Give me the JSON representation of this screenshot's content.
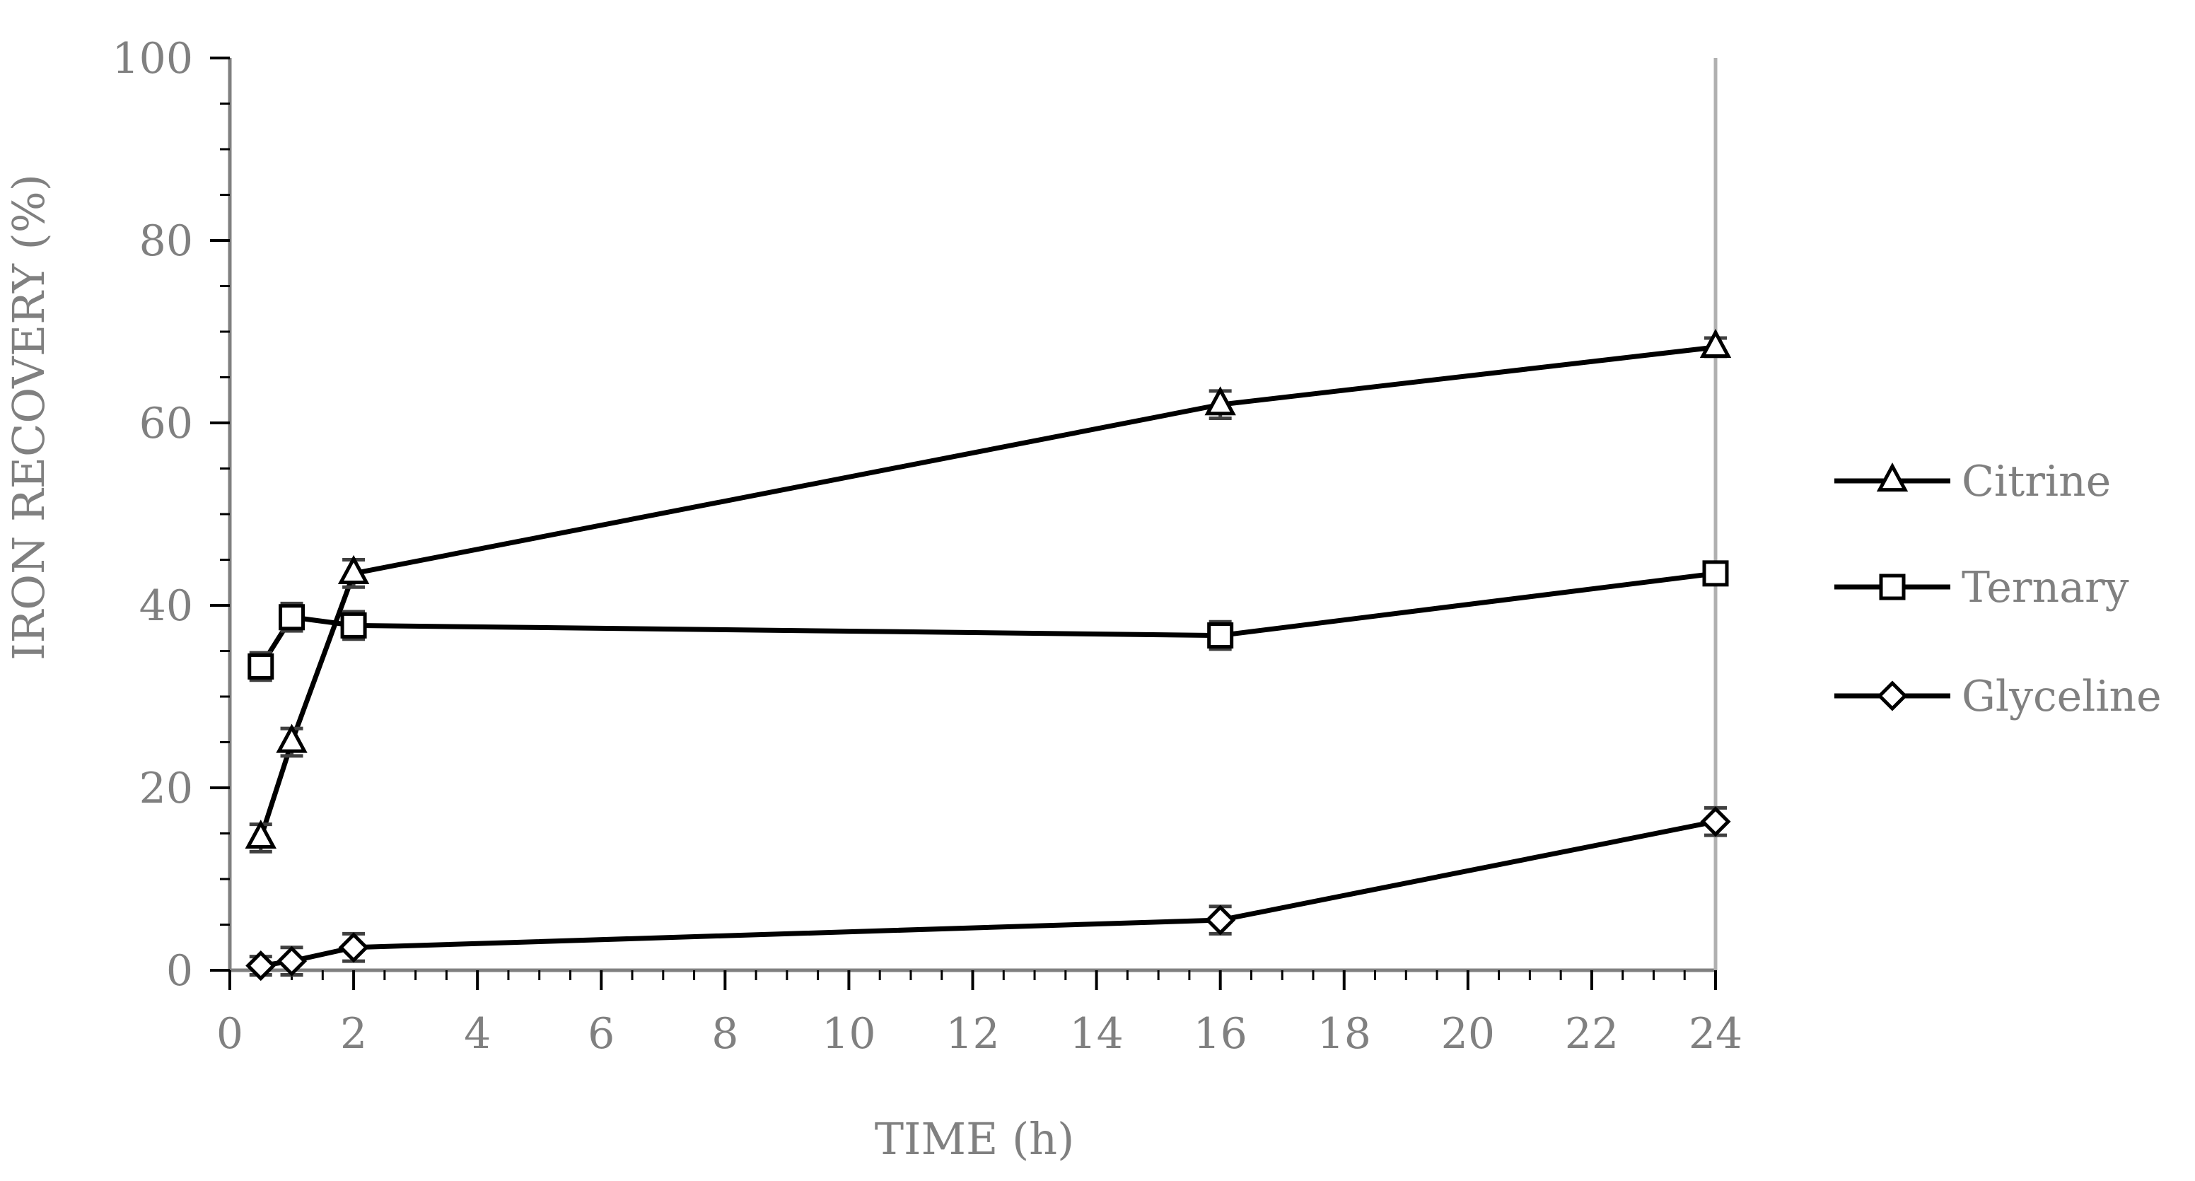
{
  "chart_data": {
    "type": "line",
    "title": "",
    "xlabel": "TIME (h)",
    "ylabel": "IRON RECOVERY (%)",
    "xlim": [
      0,
      24
    ],
    "ylim": [
      0,
      100
    ],
    "x_ticks": [
      "0",
      "2",
      "4",
      "6",
      "8",
      "10",
      "12",
      "14",
      "16",
      "18",
      "20",
      "22",
      "24"
    ],
    "y_ticks": [
      "0",
      "20",
      "40",
      "60",
      "80",
      "100"
    ],
    "grid": false,
    "legend_position": "right",
    "series": [
      {
        "name": "Citrine",
        "marker": "triangle",
        "x": [
          0.5,
          1,
          2,
          16,
          24
        ],
        "values": [
          14.5,
          25.0,
          43.5,
          62.0,
          68.3
        ],
        "errors": [
          1.5,
          1.5,
          1.5,
          1.5,
          1.0
        ]
      },
      {
        "name": "Ternary",
        "marker": "square",
        "x": [
          0.5,
          1,
          2,
          16,
          24
        ],
        "values": [
          33.3,
          38.7,
          37.8,
          36.7,
          43.5
        ],
        "errors": [
          1.5,
          1.5,
          1.5,
          1.5,
          1.0
        ]
      },
      {
        "name": "Glyceline",
        "marker": "diamond",
        "x": [
          0.5,
          1,
          2,
          16,
          24
        ],
        "values": [
          0.5,
          1.0,
          2.5,
          5.5,
          16.3
        ],
        "errors": [
          1.0,
          1.5,
          1.5,
          1.5,
          1.5
        ]
      }
    ],
    "colors": {
      "axis": "#808080",
      "line": "#000000",
      "marker_fill": "#ffffff",
      "error_bar": "#404040",
      "text": "#808080"
    }
  }
}
